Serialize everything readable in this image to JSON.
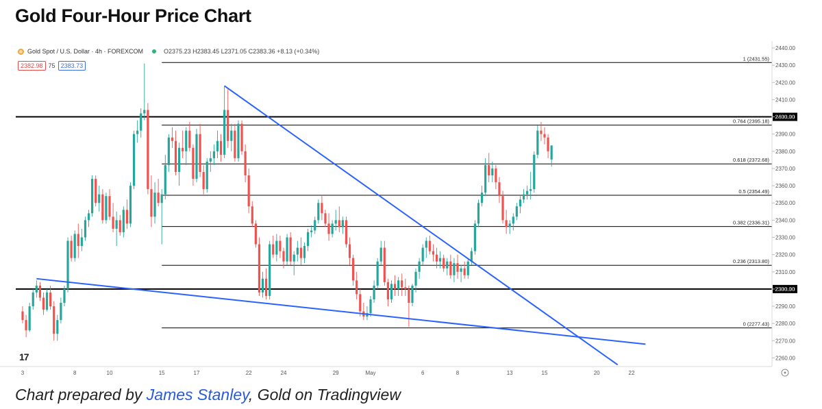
{
  "title": "Gold Four-Hour Price Chart",
  "legend": {
    "symbol": "Gold Spot / U.S. Dollar · 4h · FOREXCOM",
    "ohlc": "O2375.23 H2383.45 L2371.05 C2383.36 +8.13 (+0.34%)",
    "sell_price": "2382.98",
    "spread": "75",
    "buy_price": "2383.73"
  },
  "caption": {
    "prefix": "Chart prepared by ",
    "author": "James Stanley",
    "suffix": ", Gold on Tradingview"
  },
  "logo": "17",
  "colors": {
    "up": "#26a69a",
    "down": "#ef5350",
    "trendline": "#2962ff",
    "fib": "#000000"
  },
  "chart_data": {
    "type": "candlestick",
    "y_range": [
      2255,
      2442
    ],
    "y_ticks": [
      "2260.00",
      "2270.00",
      "2280.00",
      "2290.00",
      "2300.00",
      "2310.00",
      "2320.00",
      "2330.00",
      "2340.00",
      "2350.00",
      "2360.00",
      "2370.00",
      "2380.00",
      "2390.00",
      "2400.00",
      "2410.00",
      "2420.00",
      "2430.00",
      "2440.00"
    ],
    "x_ticks": [
      {
        "label": "3",
        "bar": 0
      },
      {
        "label": "8",
        "bar": 15
      },
      {
        "label": "10",
        "bar": 25
      },
      {
        "label": "15",
        "bar": 40
      },
      {
        "label": "17",
        "bar": 50
      },
      {
        "label": "22",
        "bar": 65
      },
      {
        "label": "24",
        "bar": 75
      },
      {
        "label": "29",
        "bar": 90
      },
      {
        "label": "May",
        "bar": 100
      },
      {
        "label": "6",
        "bar": 115
      },
      {
        "label": "8",
        "bar": 125
      },
      {
        "label": "13",
        "bar": 140
      },
      {
        "label": "15",
        "bar": 150
      },
      {
        "label": "20",
        "bar": 165
      },
      {
        "label": "22",
        "bar": 175
      }
    ],
    "horizontal_levels": [
      {
        "price": 2400.0,
        "label": "2400.00"
      },
      {
        "price": 2300.0,
        "label": "2300.00"
      }
    ],
    "fib_levels": [
      {
        "price": 2431.55,
        "label": "1 (2431.55)"
      },
      {
        "price": 2395.18,
        "label": "0.764 (2395.18)"
      },
      {
        "price": 2372.68,
        "label": "0.618 (2372.68)"
      },
      {
        "price": 2354.49,
        "label": "0.5 (2354.49)"
      },
      {
        "price": 2336.31,
        "label": "0.382 (2336.31)"
      },
      {
        "price": 2313.8,
        "label": "0.236 (2313.80)"
      },
      {
        "price": 2277.43,
        "label": "0 (2277.43)"
      }
    ],
    "trendlines": [
      {
        "name": "descending-resistance",
        "start": {
          "bar": 58,
          "price": 2418
        },
        "end": {
          "bar": 171,
          "price": 2256
        }
      },
      {
        "name": "lower-support",
        "start": {
          "bar": 4,
          "price": 2306
        },
        "end": {
          "bar": 179,
          "price": 2268
        }
      }
    ],
    "candles": [
      [
        2287,
        2290,
        2280,
        2282
      ],
      [
        2282,
        2285,
        2272,
        2276
      ],
      [
        2276,
        2292,
        2275,
        2290
      ],
      [
        2290,
        2300,
        2288,
        2298
      ],
      [
        2298,
        2305,
        2295,
        2302
      ],
      [
        2302,
        2304,
        2293,
        2295
      ],
      [
        2295,
        2298,
        2285,
        2288
      ],
      [
        2288,
        2300,
        2287,
        2298
      ],
      [
        2298,
        2302,
        2288,
        2290
      ],
      [
        2290,
        2293,
        2270,
        2274
      ],
      [
        2274,
        2285,
        2270,
        2282
      ],
      [
        2282,
        2295,
        2280,
        2292
      ],
      [
        2292,
        2302,
        2290,
        2300
      ],
      [
        2300,
        2330,
        2298,
        2328
      ],
      [
        2328,
        2331,
        2316,
        2318
      ],
      [
        2318,
        2334,
        2316,
        2332
      ],
      [
        2332,
        2338,
        2318,
        2325
      ],
      [
        2325,
        2335,
        2322,
        2330
      ],
      [
        2330,
        2342,
        2328,
        2340
      ],
      [
        2340,
        2346,
        2336,
        2344
      ],
      [
        2344,
        2366,
        2342,
        2364
      ],
      [
        2364,
        2366,
        2348,
        2350
      ],
      [
        2350,
        2360,
        2345,
        2355
      ],
      [
        2355,
        2358,
        2338,
        2340
      ],
      [
        2340,
        2356,
        2338,
        2354
      ],
      [
        2354,
        2358,
        2340,
        2342
      ],
      [
        2342,
        2350,
        2333,
        2335
      ],
      [
        2335,
        2345,
        2325,
        2340
      ],
      [
        2340,
        2343,
        2331,
        2333
      ],
      [
        2333,
        2348,
        2330,
        2346
      ],
      [
        2346,
        2352,
        2335,
        2338
      ],
      [
        2338,
        2362,
        2336,
        2360
      ],
      [
        2360,
        2392,
        2358,
        2390
      ],
      [
        2390,
        2398,
        2385,
        2392
      ],
      [
        2392,
        2405,
        2388,
        2402
      ],
      [
        2402,
        2431,
        2398,
        2404
      ],
      [
        2404,
        2408,
        2355,
        2358
      ],
      [
        2358,
        2366,
        2336,
        2342
      ],
      [
        2342,
        2362,
        2338,
        2356
      ],
      [
        2356,
        2364,
        2348,
        2350
      ],
      [
        2350,
        2358,
        2326,
        2355
      ],
      [
        2355,
        2378,
        2352,
        2372
      ],
      [
        2372,
        2390,
        2368,
        2388
      ],
      [
        2388,
        2394,
        2382,
        2386
      ],
      [
        2386,
        2392,
        2366,
        2368
      ],
      [
        2368,
        2385,
        2360,
        2382
      ],
      [
        2382,
        2392,
        2376,
        2380
      ],
      [
        2380,
        2394,
        2372,
        2392
      ],
      [
        2392,
        2397,
        2380,
        2382
      ],
      [
        2382,
        2384,
        2360,
        2364
      ],
      [
        2364,
        2393,
        2362,
        2390
      ],
      [
        2390,
        2396,
        2365,
        2368
      ],
      [
        2368,
        2372,
        2355,
        2358
      ],
      [
        2358,
        2376,
        2356,
        2374
      ],
      [
        2374,
        2380,
        2368,
        2376
      ],
      [
        2376,
        2384,
        2372,
        2380
      ],
      [
        2380,
        2392,
        2376,
        2386
      ],
      [
        2386,
        2390,
        2374,
        2378
      ],
      [
        2378,
        2418,
        2376,
        2404
      ],
      [
        2404,
        2416,
        2382,
        2386
      ],
      [
        2386,
        2396,
        2380,
        2392
      ],
      [
        2392,
        2396,
        2374,
        2376
      ],
      [
        2376,
        2398,
        2374,
        2396
      ],
      [
        2396,
        2398,
        2378,
        2380
      ],
      [
        2380,
        2384,
        2362,
        2366
      ],
      [
        2366,
        2370,
        2344,
        2348
      ],
      [
        2348,
        2351,
        2336,
        2338
      ],
      [
        2338,
        2340,
        2324,
        2326
      ],
      [
        2326,
        2330,
        2296,
        2298
      ],
      [
        2298,
        2310,
        2295,
        2306
      ],
      [
        2306,
        2312,
        2294,
        2296
      ],
      [
        2296,
        2328,
        2294,
        2326
      ],
      [
        2326,
        2331,
        2318,
        2320
      ],
      [
        2320,
        2332,
        2316,
        2328
      ],
      [
        2328,
        2331,
        2318,
        2322
      ],
      [
        2322,
        2324,
        2312,
        2316
      ],
      [
        2316,
        2332,
        2314,
        2330
      ],
      [
        2330,
        2333,
        2314,
        2316
      ],
      [
        2316,
        2322,
        2308,
        2320
      ],
      [
        2320,
        2328,
        2316,
        2324
      ],
      [
        2324,
        2330,
        2314,
        2318
      ],
      [
        2318,
        2327,
        2315,
        2325
      ],
      [
        2325,
        2335,
        2322,
        2333
      ],
      [
        2333,
        2337,
        2330,
        2334
      ],
      [
        2334,
        2342,
        2332,
        2340
      ],
      [
        2340,
        2352,
        2338,
        2350
      ],
      [
        2350,
        2354,
        2340,
        2344
      ],
      [
        2344,
        2346,
        2336,
        2338
      ],
      [
        2338,
        2344,
        2328,
        2332
      ],
      [
        2332,
        2340,
        2330,
        2338
      ],
      [
        2338,
        2346,
        2334,
        2340
      ],
      [
        2340,
        2348,
        2333,
        2336
      ],
      [
        2336,
        2342,
        2332,
        2340
      ],
      [
        2340,
        2342,
        2324,
        2326
      ],
      [
        2326,
        2330,
        2314,
        2318
      ],
      [
        2318,
        2320,
        2302,
        2305
      ],
      [
        2305,
        2310,
        2294,
        2297
      ],
      [
        2297,
        2300,
        2284,
        2287
      ],
      [
        2287,
        2292,
        2282,
        2284
      ],
      [
        2284,
        2290,
        2282,
        2286
      ],
      [
        2286,
        2296,
        2284,
        2294
      ],
      [
        2294,
        2305,
        2292,
        2302
      ],
      [
        2302,
        2318,
        2300,
        2316
      ],
      [
        2316,
        2328,
        2314,
        2324
      ],
      [
        2324,
        2328,
        2302,
        2304
      ],
      [
        2304,
        2306,
        2290,
        2294
      ],
      [
        2294,
        2305,
        2292,
        2303
      ],
      [
        2303,
        2308,
        2296,
        2300
      ],
      [
        2300,
        2307,
        2296,
        2305
      ],
      [
        2305,
        2309,
        2296,
        2301
      ],
      [
        2301,
        2306,
        2296,
        2300
      ],
      [
        2300,
        2302,
        2278,
        2292
      ],
      [
        2292,
        2303,
        2290,
        2302
      ],
      [
        2302,
        2312,
        2298,
        2310
      ],
      [
        2310,
        2318,
        2306,
        2316
      ],
      [
        2316,
        2326,
        2314,
        2324
      ],
      [
        2324,
        2330,
        2318,
        2328
      ],
      [
        2328,
        2331,
        2320,
        2322
      ],
      [
        2322,
        2326,
        2316,
        2320
      ],
      [
        2320,
        2324,
        2312,
        2316
      ],
      [
        2316,
        2322,
        2312,
        2318
      ],
      [
        2318,
        2320,
        2310,
        2312
      ],
      [
        2312,
        2318,
        2308,
        2316
      ],
      [
        2316,
        2320,
        2306,
        2308
      ],
      [
        2308,
        2318,
        2304,
        2315
      ],
      [
        2315,
        2320,
        2306,
        2310
      ],
      [
        2310,
        2314,
        2304,
        2312
      ],
      [
        2312,
        2316,
        2306,
        2308
      ],
      [
        2308,
        2318,
        2306,
        2316
      ],
      [
        2316,
        2324,
        2314,
        2322
      ],
      [
        2322,
        2340,
        2320,
        2338
      ],
      [
        2338,
        2352,
        2336,
        2350
      ],
      [
        2350,
        2360,
        2348,
        2356
      ],
      [
        2356,
        2376,
        2354,
        2372
      ],
      [
        2372,
        2379,
        2362,
        2366
      ],
      [
        2366,
        2374,
        2362,
        2370
      ],
      [
        2370,
        2372,
        2358,
        2362
      ],
      [
        2362,
        2365,
        2350,
        2354
      ],
      [
        2354,
        2357,
        2338,
        2340
      ],
      [
        2340,
        2346,
        2332,
        2336
      ],
      [
        2336,
        2340,
        2332,
        2338
      ],
      [
        2338,
        2344,
        2334,
        2342
      ],
      [
        2342,
        2350,
        2340,
        2348
      ],
      [
        2348,
        2354,
        2344,
        2352
      ],
      [
        2352,
        2358,
        2350,
        2355
      ],
      [
        2355,
        2360,
        2352,
        2357
      ],
      [
        2357,
        2368,
        2352,
        2358
      ],
      [
        2358,
        2380,
        2356,
        2378
      ],
      [
        2378,
        2395,
        2376,
        2392
      ],
      [
        2392,
        2397,
        2386,
        2390
      ],
      [
        2390,
        2394,
        2384,
        2388
      ],
      [
        2388,
        2390,
        2376,
        2380
      ],
      [
        2375.23,
        2383.45,
        2371.05,
        2383.36
      ]
    ]
  }
}
